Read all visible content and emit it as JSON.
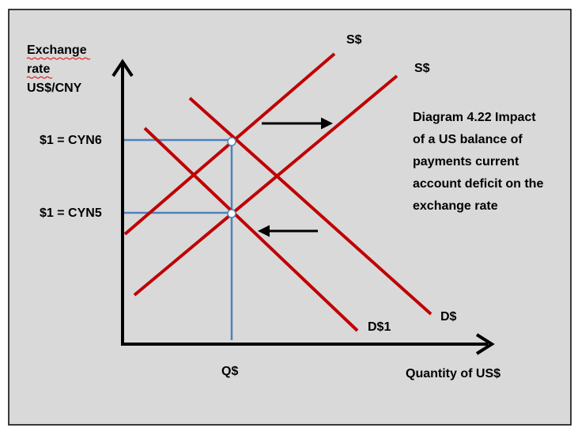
{
  "y_axis_label": [
    "Exchange",
    "rate",
    "US$/CNY"
  ],
  "y_levels": [
    "$1 = CYN6",
    "$1 = CYN5"
  ],
  "supply_labels": [
    "S$",
    "S$"
  ],
  "demand_labels": [
    "D$",
    "D$1"
  ],
  "x_level": "Q$",
  "x_axis_label": "Quantity of US$",
  "caption": [
    "Diagram 4.22 Impact",
    "of a US balance of",
    "payments current",
    "account deficit on the",
    "exchange rate"
  ]
}
